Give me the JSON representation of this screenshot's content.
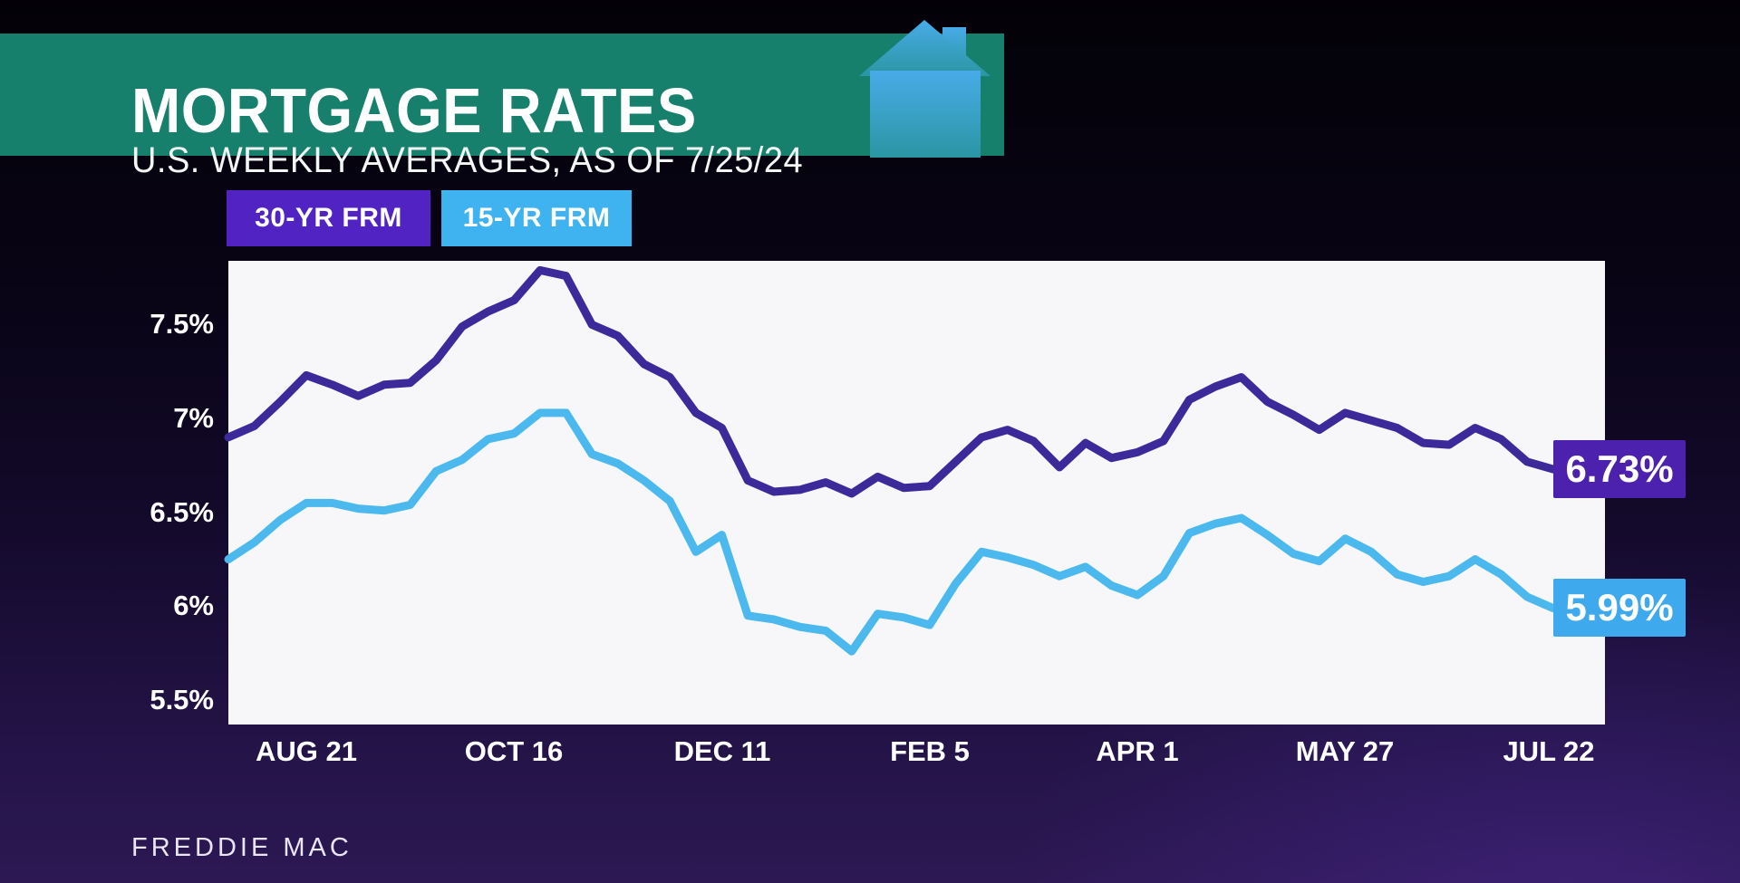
{
  "header": {
    "title": "MORTGAGE RATES",
    "subtitle": "U.S. WEEKLY AVERAGES, AS OF 7/25/24",
    "banner_color": "#16806C"
  },
  "legend": {
    "items": [
      {
        "label": "30-YR FRM",
        "color": "#5023C2"
      },
      {
        "label": "15-YR FRM",
        "color": "#3FB2F0"
      }
    ]
  },
  "chart_data": {
    "type": "line",
    "title": "MORTGAGE RATES",
    "subtitle": "U.S. WEEKLY AVERAGES, AS OF 7/25/24",
    "x_frequency": "weekly, Aug 2023 - Jul 2024",
    "x_tick_labels": [
      "AUG 21",
      "OCT 16",
      "DEC 11",
      "FEB 5",
      "APR 1",
      "MAY 27",
      "JUL 22"
    ],
    "x_tick_indices": [
      3,
      11,
      19,
      27,
      35,
      43,
      51
    ],
    "x_slots": 53,
    "y_ticks": [
      {
        "label": "7.5%",
        "value": 7.5
      },
      {
        "label": "7%",
        "value": 7.0
      },
      {
        "label": "6.5%",
        "value": 6.5
      },
      {
        "label": "6%",
        "value": 6.0
      },
      {
        "label": "5.5%",
        "value": 5.5
      }
    ],
    "axis_range": [
      5.37,
      7.84
    ],
    "grid": false,
    "legend_position": "top-left",
    "plot_background": "#F7F6F8",
    "series": [
      {
        "name": "30-YR FRM",
        "color": "#3C2A9B",
        "box_color": "#4B21AD",
        "end_label": "6.73%",
        "values": [
          6.9,
          6.96,
          7.09,
          7.23,
          7.18,
          7.12,
          7.18,
          7.19,
          7.31,
          7.49,
          7.57,
          7.63,
          7.79,
          7.76,
          7.5,
          7.44,
          7.29,
          7.22,
          7.03,
          6.95,
          6.67,
          6.61,
          6.62,
          6.66,
          6.6,
          6.69,
          6.63,
          6.64,
          6.77,
          6.9,
          6.94,
          6.88,
          6.74,
          6.87,
          6.79,
          6.82,
          6.88,
          7.1,
          7.17,
          7.22,
          7.09,
          7.02,
          6.94,
          7.03,
          6.99,
          6.95,
          6.87,
          6.86,
          6.95,
          6.89,
          6.77,
          6.73
        ]
      },
      {
        "name": "15-YR FRM",
        "color": "#4CB9EE",
        "box_color": "#3EA9EC",
        "end_label": "5.99%",
        "values": [
          6.25,
          6.34,
          6.46,
          6.55,
          6.55,
          6.52,
          6.51,
          6.54,
          6.72,
          6.78,
          6.89,
          6.92,
          7.03,
          7.03,
          6.81,
          6.76,
          6.67,
          6.56,
          6.29,
          6.38,
          5.95,
          5.93,
          5.89,
          5.87,
          5.76,
          5.96,
          5.94,
          5.9,
          6.12,
          6.29,
          6.26,
          6.22,
          6.16,
          6.21,
          6.11,
          6.06,
          6.16,
          6.39,
          6.44,
          6.47,
          6.38,
          6.28,
          6.24,
          6.36,
          6.29,
          6.17,
          6.13,
          6.16,
          6.25,
          6.17,
          6.05,
          5.99
        ]
      }
    ]
  },
  "source": {
    "label": "FREDDIE MAC"
  }
}
